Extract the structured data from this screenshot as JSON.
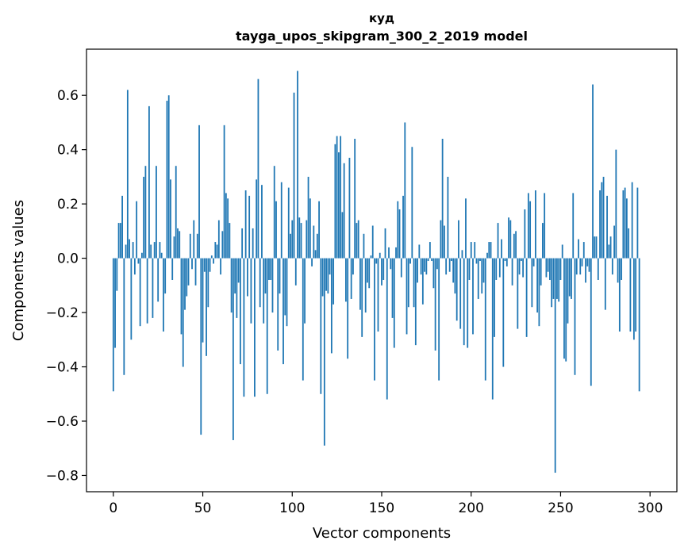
{
  "chart_data": {
    "type": "bar",
    "title": "куд",
    "subtitle": "tayga_upos_skipgram_300_2_2019 model",
    "xlabel": "Vector components",
    "ylabel": "Components values",
    "xlim": [
      -15,
      315
    ],
    "ylim": [
      -0.86,
      0.77
    ],
    "x_ticks": [
      0,
      50,
      100,
      150,
      200,
      250,
      300
    ],
    "x_tick_labels": [
      "0",
      "50",
      "100",
      "150",
      "200",
      "250",
      "300"
    ],
    "y_ticks": [
      0.6,
      0.4,
      0.2,
      0.0,
      -0.2,
      -0.4,
      -0.6,
      -0.8
    ],
    "y_tick_labels": [
      "0.6",
      "0.4",
      "0.2",
      "0.0",
      "−0.2",
      "−0.4",
      "−0.6",
      "−0.8"
    ],
    "bar_color": "#1f77b4",
    "series": [
      {
        "name": "куд",
        "values": [
          -0.49,
          -0.33,
          -0.12,
          0.13,
          0.13,
          0.23,
          -0.43,
          0.05,
          0.62,
          0.07,
          -0.3,
          0.06,
          -0.06,
          0.21,
          -0.02,
          -0.25,
          0.02,
          0.3,
          0.34,
          -0.24,
          0.56,
          0.05,
          -0.22,
          0.06,
          0.34,
          -0.16,
          0.06,
          0.02,
          -0.27,
          -0.13,
          0.58,
          0.6,
          0.29,
          -0.08,
          0.08,
          0.34,
          0.11,
          0.1,
          -0.28,
          -0.4,
          -0.19,
          -0.14,
          -0.1,
          0.09,
          -0.04,
          0.14,
          -0.1,
          0.09,
          0.49,
          -0.65,
          -0.31,
          -0.05,
          -0.36,
          -0.18,
          -0.05,
          0.01,
          -0.02,
          0.06,
          0.05,
          0.14,
          -0.06,
          0.1,
          0.49,
          0.24,
          0.22,
          0.13,
          -0.2,
          -0.67,
          -0.13,
          -0.22,
          -0.09,
          -0.39,
          0.11,
          -0.51,
          0.25,
          -0.14,
          0.23,
          -0.24,
          0.11,
          -0.51,
          0.29,
          0.66,
          -0.18,
          0.27,
          -0.24,
          -0.13,
          -0.5,
          -0.08,
          -0.08,
          -0.2,
          0.34,
          0.21,
          -0.34,
          -0.13,
          0.28,
          -0.39,
          -0.21,
          -0.25,
          0.26,
          0.09,
          0.14,
          0.61,
          -0.1,
          0.69,
          0.15,
          0.13,
          -0.45,
          -0.24,
          0.14,
          0.3,
          0.22,
          -0.03,
          0.12,
          0.03,
          0.09,
          0.21,
          -0.5,
          -0.14,
          -0.69,
          -0.12,
          -0.13,
          -0.06,
          -0.35,
          -0.17,
          0.42,
          0.45,
          0.39,
          0.45,
          0.17,
          0.35,
          -0.16,
          -0.37,
          0.37,
          -0.15,
          -0.06,
          0.44,
          0.13,
          0.14,
          -0.19,
          -0.29,
          0.09,
          -0.2,
          -0.09,
          -0.11,
          0.01,
          0.12,
          -0.45,
          -0.02,
          -0.27,
          0.02,
          -0.1,
          -0.08,
          0.11,
          -0.52,
          0.04,
          -0.04,
          -0.22,
          -0.33,
          0.04,
          0.21,
          0.18,
          -0.07,
          0.23,
          0.5,
          -0.28,
          -0.18,
          -0.02,
          0.41,
          -0.18,
          -0.32,
          -0.09,
          0.05,
          -0.06,
          -0.17,
          -0.05,
          -0.06,
          -0.01,
          0.06,
          -0.01,
          -0.11,
          -0.34,
          -0.04,
          -0.45,
          0.14,
          0.44,
          0.12,
          -0.06,
          0.3,
          -0.05,
          -0.01,
          -0.09,
          -0.13,
          -0.23,
          0.14,
          -0.26,
          0.03,
          -0.32,
          0.22,
          -0.33,
          -0.08,
          0.06,
          -0.28,
          0.06,
          -0.02,
          -0.15,
          -0.01,
          -0.13,
          -0.09,
          -0.45,
          0.02,
          0.06,
          0.06,
          -0.52,
          -0.29,
          -0.08,
          0.13,
          -0.07,
          0.07,
          -0.4,
          -0.01,
          -0.03,
          0.15,
          0.14,
          -0.1,
          0.09,
          0.1,
          -0.26,
          -0.06,
          -0.01,
          -0.07,
          0.18,
          -0.29,
          0.24,
          0.21,
          -0.18,
          -0.03,
          0.25,
          -0.2,
          -0.25,
          -0.1,
          0.13,
          0.24,
          -0.07,
          -0.05,
          -0.08,
          -0.18,
          -0.15,
          -0.79,
          -0.15,
          -0.16,
          -0.08,
          0.05,
          -0.37,
          -0.38,
          -0.24,
          -0.14,
          -0.15,
          0.24,
          -0.43,
          -0.06,
          0.07,
          -0.06,
          -0.03,
          0.06,
          -0.09,
          -0.03,
          -0.05,
          -0.47,
          0.64,
          0.08,
          0.08,
          -0.08,
          0.25,
          0.28,
          0.3,
          -0.19,
          0.23,
          0.05,
          0.08,
          -0.06,
          0.12,
          0.4,
          -0.09,
          -0.27,
          -0.08,
          0.25,
          0.26,
          0.22,
          0.11,
          -0.27,
          0.28,
          -0.3,
          -0.27,
          0.26,
          -0.49
        ]
      }
    ]
  }
}
